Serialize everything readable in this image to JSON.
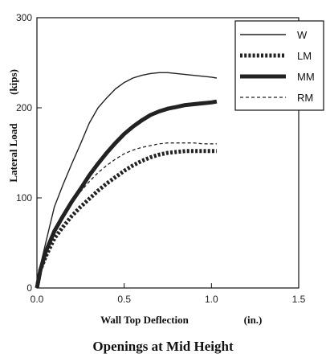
{
  "caption": "Openings at Mid Height",
  "chart_data": {
    "type": "line",
    "title": "",
    "xlabel": "Wall Top Deflection",
    "xlabel_unit": "(in.)",
    "ylabel": "Lateral Load",
    "ylabel_unit": "(kips)",
    "xlim": [
      0.0,
      1.5
    ],
    "ylim": [
      0,
      300
    ],
    "x_ticks": [
      "0.0",
      "0.5",
      "1.0",
      "1.5"
    ],
    "y_ticks": [
      "0",
      "100",
      "200",
      "300"
    ],
    "grid": false,
    "legend_position": "top-right",
    "series": [
      {
        "name": "W",
        "style": "thin-solid",
        "x": [
          0.0,
          0.02,
          0.05,
          0.1,
          0.15,
          0.2,
          0.25,
          0.3,
          0.35,
          0.4,
          0.45,
          0.5,
          0.55,
          0.6,
          0.65,
          0.7,
          0.75,
          0.8,
          0.85,
          0.9,
          0.95,
          1.0,
          1.03
        ],
        "y": [
          0,
          25,
          50,
          90,
          115,
          138,
          160,
          183,
          200,
          211,
          221,
          228,
          233,
          236,
          238,
          239,
          239,
          238,
          237,
          236,
          235,
          234,
          233
        ]
      },
      {
        "name": "LM",
        "style": "thick-dotted",
        "x": [
          0.0,
          0.02,
          0.05,
          0.1,
          0.15,
          0.2,
          0.25,
          0.3,
          0.35,
          0.4,
          0.45,
          0.5,
          0.55,
          0.6,
          0.65,
          0.7,
          0.75,
          0.8,
          0.85,
          0.9,
          0.95,
          1.0,
          1.03
        ],
        "y": [
          0,
          20,
          35,
          55,
          68,
          80,
          90,
          99,
          108,
          116,
          123,
          130,
          136,
          141,
          145,
          148,
          150,
          151,
          152,
          152,
          152,
          152,
          152
        ]
      },
      {
        "name": "MM",
        "style": "thick-solid",
        "x": [
          0.0,
          0.02,
          0.05,
          0.1,
          0.15,
          0.2,
          0.25,
          0.3,
          0.35,
          0.4,
          0.45,
          0.5,
          0.55,
          0.6,
          0.65,
          0.7,
          0.75,
          0.8,
          0.85,
          0.9,
          0.95,
          1.0,
          1.03
        ],
        "y": [
          0,
          20,
          40,
          63,
          80,
          96,
          110,
          125,
          138,
          150,
          161,
          171,
          179,
          186,
          192,
          196,
          199,
          201,
          203,
          204,
          205,
          206,
          207
        ]
      },
      {
        "name": "RM",
        "style": "thin-dashed",
        "x": [
          0.0,
          0.02,
          0.05,
          0.1,
          0.15,
          0.2,
          0.25,
          0.3,
          0.35,
          0.4,
          0.45,
          0.5,
          0.55,
          0.6,
          0.65,
          0.7,
          0.75,
          0.8,
          0.85,
          0.9,
          0.95,
          1.0,
          1.03
        ],
        "y": [
          0,
          22,
          42,
          66,
          82,
          96,
          107,
          118,
          128,
          136,
          143,
          149,
          153,
          156,
          158,
          160,
          161,
          161,
          161,
          161,
          160,
          160,
          160
        ]
      }
    ]
  }
}
